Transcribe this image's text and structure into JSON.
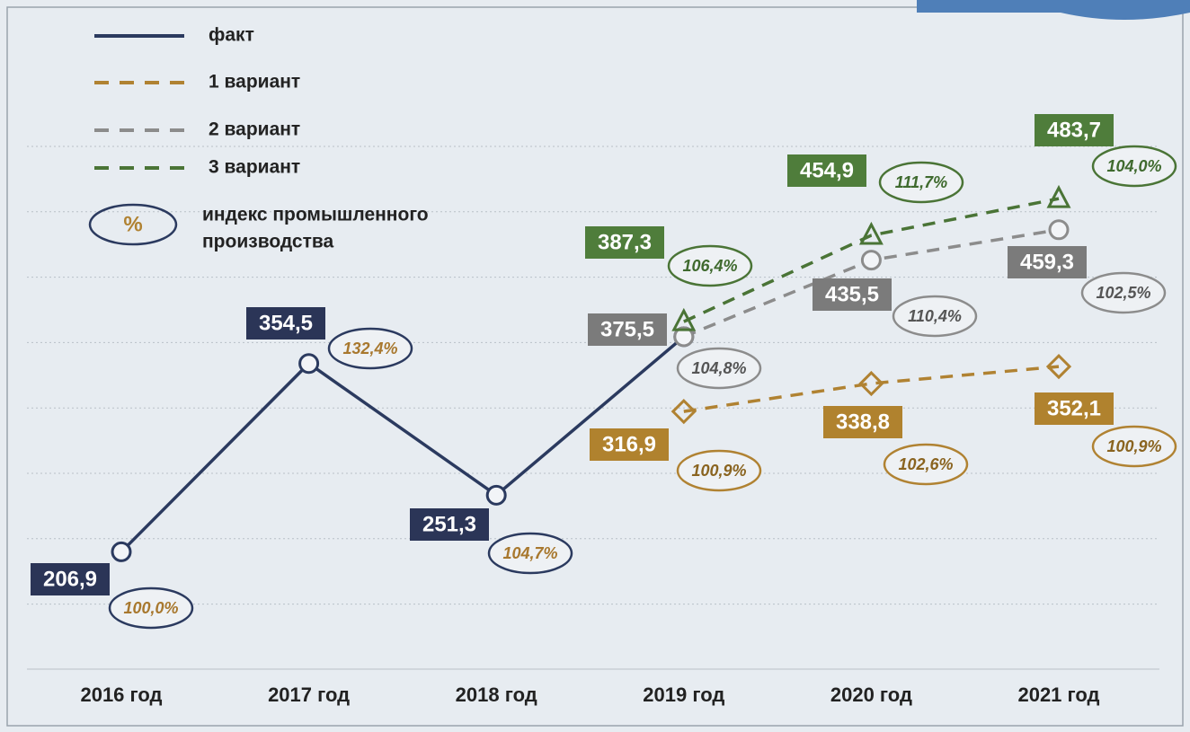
{
  "chart_data": {
    "type": "line",
    "categories": [
      "2016 год",
      "2017 год",
      "2018 год",
      "2019 год",
      "2020 год",
      "2021 год"
    ],
    "ylim": [
      115,
      576
    ],
    "legend": {
      "index_symbol": "%",
      "index_name": [
        "индекс промышленного",
        "производства"
      ]
    },
    "series": [
      {
        "name": "факт",
        "color": "#2b3a5f",
        "box_color": "#2b3557",
        "text_color": "#a8782e",
        "dashed": false,
        "marker": "circle",
        "values": [
          206.9,
          354.5,
          251.3,
          375.5,
          null,
          null
        ],
        "value_labels": [
          "206,9",
          "354,5",
          "251,3",
          null,
          null,
          null
        ],
        "index": [
          100.0,
          132.4,
          104.7,
          null,
          null,
          null
        ],
        "index_labels": [
          "100,0%",
          "132,4%",
          "104,7%",
          null,
          null,
          null
        ]
      },
      {
        "name": "1 вариант",
        "color": "#b08232",
        "box_color": "#b0822e",
        "text_color": "#8a6420",
        "dashed": true,
        "marker": "diamond",
        "values": [
          null,
          null,
          null,
          316.9,
          338.8,
          352.1
        ],
        "value_labels": [
          null,
          null,
          null,
          "316,9",
          "338,8",
          "352,1"
        ],
        "index": [
          null,
          null,
          null,
          100.9,
          102.6,
          100.9
        ],
        "index_labels": [
          null,
          null,
          null,
          "100,9%",
          "102,6%",
          "100,9%"
        ]
      },
      {
        "name": "2 вариант",
        "color": "#8c8c8c",
        "box_color": "#7b7b7b",
        "text_color": "#555555",
        "dashed": true,
        "marker": "circle",
        "values": [
          null,
          null,
          null,
          375.5,
          435.5,
          459.3
        ],
        "value_labels": [
          null,
          null,
          null,
          "375,5",
          "435,5",
          "459,3"
        ],
        "index": [
          null,
          null,
          null,
          104.8,
          110.4,
          102.5
        ],
        "index_labels": [
          null,
          null,
          null,
          "104,8%",
          "110,4%",
          "102,5%"
        ]
      },
      {
        "name": "3 вариант",
        "color": "#4a7436",
        "box_color": "#4f7d3b",
        "text_color": "#3f6a2e",
        "dashed": true,
        "marker": "triangle",
        "values": [
          null,
          null,
          null,
          387.3,
          454.9,
          483.7
        ],
        "value_labels": [
          null,
          null,
          null,
          "387,3",
          "454,9",
          "483,7"
        ],
        "index": [
          null,
          null,
          null,
          106.4,
          111.7,
          104.0
        ],
        "index_labels": [
          null,
          null,
          null,
          "106,4%",
          "111,7%",
          "104,0%"
        ]
      }
    ]
  }
}
